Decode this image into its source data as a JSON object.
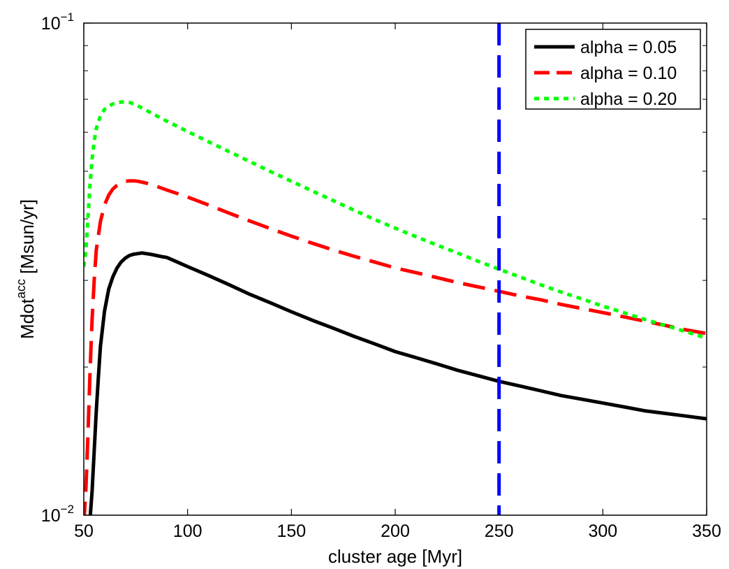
{
  "chart_data": {
    "type": "line",
    "title": "",
    "xlabel": "cluster age [Myr]",
    "ylabel": {
      "base": "Mdot",
      "sup": "acc",
      "unit": " [Msun/yr]"
    },
    "xlim": [
      50,
      350
    ],
    "ylim": [
      0.01,
      0.1
    ],
    "yscale": "log",
    "xticks": [
      50,
      100,
      150,
      200,
      250,
      300,
      350
    ],
    "xtick_labels": [
      "50",
      "100",
      "150",
      "200",
      "250",
      "300",
      "350"
    ],
    "yticks": [
      0.01,
      0.1
    ],
    "ytick_labels": [
      {
        "base": "10",
        "exp": "−2"
      },
      {
        "base": "10",
        "exp": "−1"
      }
    ],
    "legend_position": "top-right",
    "vline": {
      "x": 250,
      "color": "#0000ff",
      "style": "dashed"
    },
    "series": [
      {
        "name": "alpha = 0.05",
        "color": "#000000",
        "style": "solid",
        "x": [
          53,
          54,
          55,
          56,
          57,
          58,
          60,
          62,
          64,
          66,
          68,
          70,
          72,
          74,
          76,
          78,
          80,
          82,
          85,
          88,
          90,
          95,
          100,
          110,
          120,
          130,
          140,
          150,
          160,
          170,
          180,
          190,
          200,
          210,
          220,
          230,
          240,
          250,
          260,
          270,
          280,
          290,
          300,
          310,
          320,
          330,
          340,
          350
        ],
        "y": [
          0.0098,
          0.0112,
          0.0135,
          0.0162,
          0.019,
          0.022,
          0.026,
          0.0288,
          0.0305,
          0.0318,
          0.0327,
          0.0333,
          0.0337,
          0.0339,
          0.034,
          0.0341,
          0.034,
          0.0339,
          0.0337,
          0.0335,
          0.0334,
          0.0327,
          0.032,
          0.0307,
          0.0294,
          0.0281,
          0.027,
          0.0259,
          0.0249,
          0.024,
          0.0231,
          0.0223,
          0.0215,
          0.0209,
          0.0203,
          0.0197,
          0.0192,
          0.0187,
          0.0183,
          0.0179,
          0.0175,
          0.0172,
          0.0169,
          0.0166,
          0.0163,
          0.0161,
          0.0159,
          0.0157
        ]
      },
      {
        "name": "alpha = 0.10",
        "color": "#ff0000",
        "style": "dashed",
        "x": [
          50,
          51,
          52,
          53,
          54,
          55,
          56,
          58,
          60,
          62,
          64,
          66,
          68,
          70,
          72,
          74,
          76,
          78,
          80,
          85,
          90,
          100,
          110,
          120,
          130,
          140,
          150,
          160,
          170,
          180,
          190,
          200,
          210,
          220,
          230,
          240,
          250,
          260,
          270,
          280,
          290,
          300,
          310,
          320,
          330,
          340,
          350
        ],
        "y": [
          0.0096,
          0.0113,
          0.0145,
          0.0195,
          0.025,
          0.03,
          0.0345,
          0.0395,
          0.0427,
          0.0447,
          0.046,
          0.0468,
          0.0474,
          0.0477,
          0.0478,
          0.0478,
          0.0477,
          0.0475,
          0.0473,
          0.0466,
          0.0458,
          0.0443,
          0.0427,
          0.0411,
          0.0396,
          0.0382,
          0.0369,
          0.0357,
          0.0346,
          0.0336,
          0.0327,
          0.0318,
          0.0311,
          0.0304,
          0.0297,
          0.0291,
          0.0285,
          0.0279,
          0.0274,
          0.0268,
          0.0263,
          0.0258,
          0.0253,
          0.0248,
          0.0243,
          0.0238,
          0.0234
        ]
      },
      {
        "name": "alpha = 0.20",
        "color": "#00ff00",
        "style": "dotted",
        "x": [
          50,
          51,
          52,
          53,
          54,
          55,
          56,
          58,
          60,
          62,
          64,
          66,
          68,
          70,
          72,
          75,
          80,
          85,
          90,
          100,
          110,
          120,
          130,
          140,
          150,
          160,
          170,
          180,
          190,
          200,
          210,
          220,
          230,
          240,
          250,
          260,
          270,
          280,
          290,
          300,
          310,
          320,
          330,
          340,
          350
        ],
        "y": [
          0.032,
          0.0345,
          0.04,
          0.047,
          0.053,
          0.0575,
          0.061,
          0.0648,
          0.0668,
          0.0678,
          0.0685,
          0.0689,
          0.0691,
          0.0692,
          0.069,
          0.0683,
          0.0665,
          0.0648,
          0.0632,
          0.0602,
          0.0574,
          0.0548,
          0.0523,
          0.0499,
          0.0477,
          0.0456,
          0.0436,
          0.0417,
          0.0399,
          0.0383,
          0.0368,
          0.0354,
          0.0341,
          0.0328,
          0.0316,
          0.0305,
          0.0294,
          0.0284,
          0.0275,
          0.0266,
          0.0258,
          0.025,
          0.0243,
          0.0236,
          0.0229
        ]
      }
    ]
  }
}
